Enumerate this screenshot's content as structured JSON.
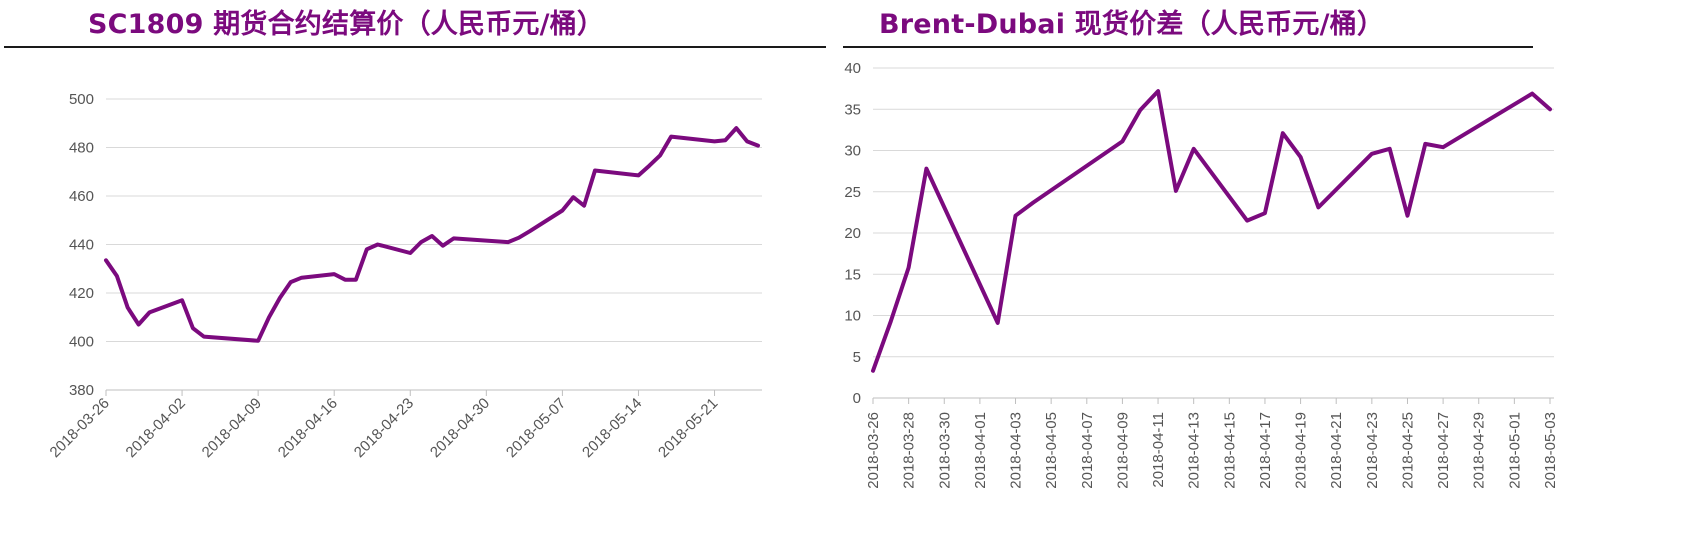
{
  "colors": {
    "title": "#7b0a7e",
    "line": "#7b0a7e",
    "grid": "#d9d9d9"
  },
  "chart_data": [
    {
      "type": "line",
      "title": "SC1809 期货合约结算价（人民币元/桶）",
      "xlabel": "",
      "ylabel": "",
      "ylim": [
        380,
        500
      ],
      "yticks": [
        380,
        400,
        420,
        440,
        460,
        480,
        500
      ],
      "xlim": [
        "2018-03-26",
        "2018-05-25"
      ],
      "xticks": [
        "2018-03-26",
        "2018-04-02",
        "2018-04-09",
        "2018-04-16",
        "2018-04-23",
        "2018-04-30",
        "2018-05-07",
        "2018-05-14",
        "2018-05-21"
      ],
      "grid": true,
      "series": [
        {
          "name": "SC1809",
          "x": [
            "2018-03-26",
            "2018-03-27",
            "2018-03-28",
            "2018-03-29",
            "2018-03-30",
            "2018-04-02",
            "2018-04-03",
            "2018-04-04",
            "2018-04-09",
            "2018-04-10",
            "2018-04-11",
            "2018-04-12",
            "2018-04-13",
            "2018-04-16",
            "2018-04-17",
            "2018-04-18",
            "2018-04-19",
            "2018-04-20",
            "2018-04-23",
            "2018-04-24",
            "2018-04-25",
            "2018-04-26",
            "2018-04-27",
            "2018-05-02",
            "2018-05-03",
            "2018-05-04",
            "2018-05-07",
            "2018-05-08",
            "2018-05-09",
            "2018-05-10",
            "2018-05-14",
            "2018-05-15",
            "2018-05-16",
            "2018-05-17",
            "2018-05-21",
            "2018-05-22",
            "2018-05-23",
            "2018-05-24",
            "2018-05-25"
          ],
          "values": [
            433.5,
            427,
            414,
            407,
            412,
            417,
            405.5,
            402,
            400.3,
            410,
            418,
            424.5,
            426.3,
            427.8,
            425.5,
            425.5,
            438,
            440,
            436.5,
            441,
            443.5,
            439.5,
            442.5,
            441,
            442.8,
            445.5,
            454,
            459.5,
            456,
            470.5,
            468.5,
            472.5,
            476.8,
            484.5,
            482.5,
            483,
            488,
            482.5,
            480.8
          ]
        }
      ]
    },
    {
      "type": "line",
      "title": "Brent-Dubai 现货价差（人民币元/桶）",
      "xlabel": "",
      "ylabel": "",
      "ylim": [
        0,
        40
      ],
      "yticks": [
        0,
        5,
        10,
        15,
        20,
        25,
        30,
        35,
        40
      ],
      "xlim": [
        "2018-03-26",
        "2018-05-03"
      ],
      "xticks": [
        "2018-03-26",
        "2018-03-28",
        "2018-03-30",
        "2018-04-01",
        "2018-04-03",
        "2018-04-05",
        "2018-04-07",
        "2018-04-09",
        "2018-04-11",
        "2018-04-13",
        "2018-04-15",
        "2018-04-17",
        "2018-04-19",
        "2018-04-21",
        "2018-04-23",
        "2018-04-25",
        "2018-04-27",
        "2018-04-29",
        "2018-05-01",
        "2018-05-03"
      ],
      "grid": true,
      "series": [
        {
          "name": "Brent-Dubai",
          "x": [
            "2018-03-26",
            "2018-03-27",
            "2018-03-28",
            "2018-03-29",
            "2018-04-02",
            "2018-04-03",
            "2018-04-04",
            "2018-04-09",
            "2018-04-10",
            "2018-04-11",
            "2018-04-12",
            "2018-04-13",
            "2018-04-16",
            "2018-04-17",
            "2018-04-18",
            "2018-04-19",
            "2018-04-20",
            "2018-04-23",
            "2018-04-24",
            "2018-04-25",
            "2018-04-26",
            "2018-04-27",
            "2018-05-02",
            "2018-05-03"
          ],
          "values": [
            3.3,
            9.3,
            15.8,
            27.8,
            9.1,
            22.1,
            23.7,
            31.1,
            34.9,
            37.2,
            25.1,
            30.2,
            21.5,
            22.4,
            32.1,
            29.2,
            23.1,
            29.6,
            30.2,
            22.1,
            30.8,
            30.4,
            36.9,
            35.0
          ]
        }
      ]
    }
  ]
}
